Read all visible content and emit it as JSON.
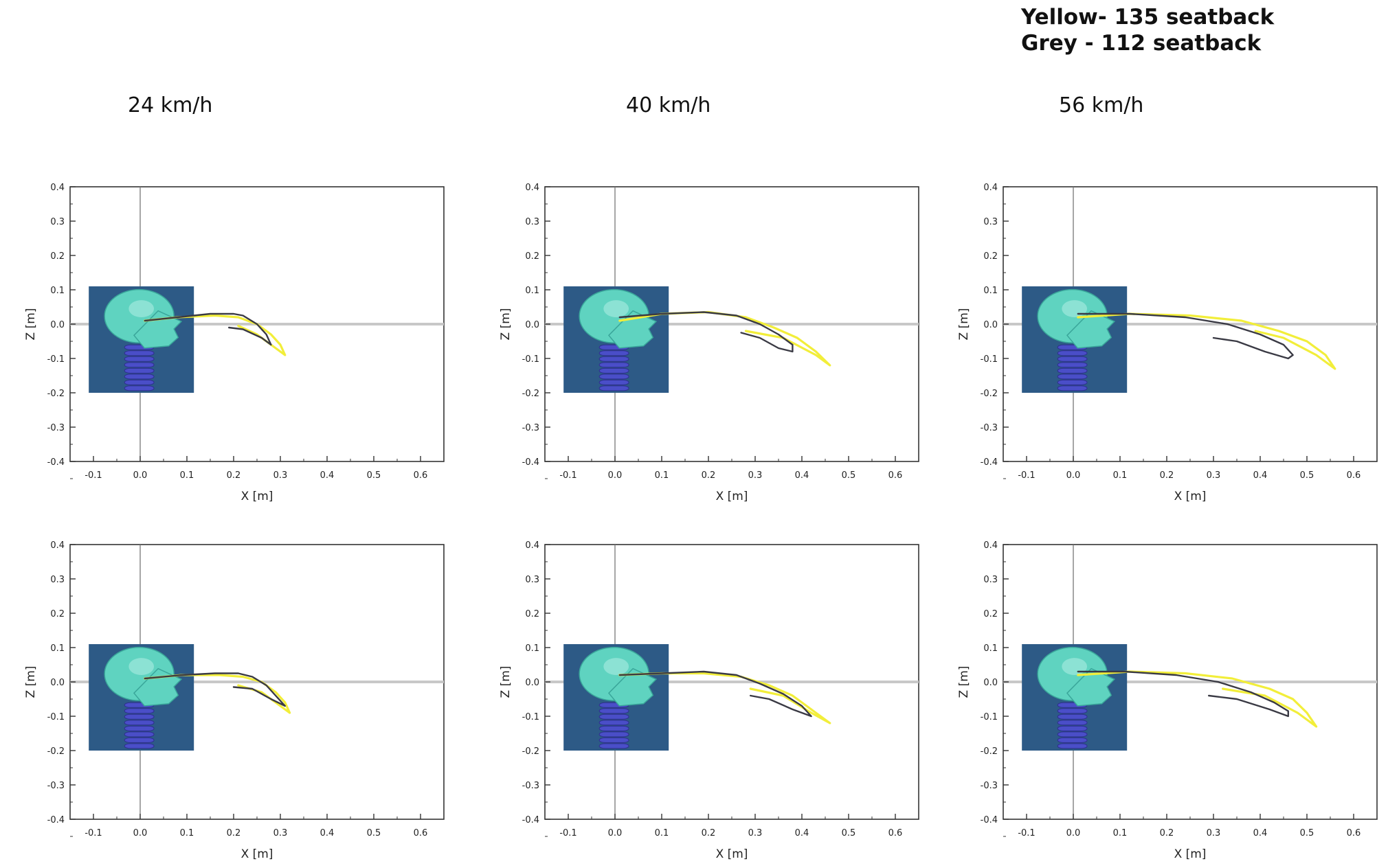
{
  "legend": {
    "yellow": "Yellow- 135 seatback",
    "grey": "Grey - 112 seatback"
  },
  "column_labels": [
    "24 km/h",
    "40 km/h",
    "56 km/h"
  ],
  "colors": {
    "yellow": "#f2ee3a",
    "grey": "#3a3a44",
    "inset_bg": "#2d5a86",
    "axis_zero": "#c8c8c8"
  },
  "chart_data": [
    {
      "type": "line",
      "speed": "24 km/h",
      "row": 1,
      "xlabel": "X [m]",
      "ylabel": "Z [m]",
      "xlim": [
        -0.15,
        0.65
      ],
      "ylim": [
        -0.4,
        0.4
      ],
      "xticks": [
        "-0.1",
        "0.0",
        "0.1",
        "0.2",
        "0.3",
        "0.4",
        "0.5",
        "0.6"
      ],
      "yticks": [
        "0.4",
        "0.3",
        "0.2",
        "0.1",
        "0.0",
        "-0.1",
        "-0.2",
        "-0.3",
        "-0.4"
      ],
      "grid": false,
      "inset_image": "head-neck-model",
      "series": [
        {
          "color": "yellow",
          "x": [
            0.01,
            0.08,
            0.16,
            0.21,
            0.25,
            0.28,
            0.3,
            0.31,
            0.29,
            0.25,
            0.21
          ],
          "y": [
            0.01,
            0.02,
            0.025,
            0.02,
            0.0,
            -0.03,
            -0.06,
            -0.09,
            -0.07,
            -0.03,
            -0.005
          ]
        },
        {
          "color": "grey",
          "x": [
            0.01,
            0.08,
            0.15,
            0.2,
            0.22,
            0.25,
            0.27,
            0.28,
            0.26,
            0.22,
            0.19
          ],
          "y": [
            0.01,
            0.02,
            0.03,
            0.03,
            0.025,
            0.0,
            -0.03,
            -0.06,
            -0.04,
            -0.015,
            -0.01
          ]
        }
      ]
    },
    {
      "type": "line",
      "speed": "40 km/h",
      "row": 1,
      "xlabel": "X [m]",
      "ylabel": "Z [m]",
      "xlim": [
        -0.15,
        0.65
      ],
      "ylim": [
        -0.4,
        0.4
      ],
      "xticks": [
        "-0.1",
        "0.0",
        "0.1",
        "0.2",
        "0.3",
        "0.4",
        "0.5",
        "0.6"
      ],
      "yticks": [
        "0.4",
        "0.3",
        "0.2",
        "0.1",
        "0.0",
        "-0.1",
        "-0.2",
        "-0.3",
        "-0.4"
      ],
      "grid": false,
      "inset_image": "head-neck-model",
      "series": [
        {
          "color": "yellow",
          "x": [
            0.01,
            0.1,
            0.2,
            0.28,
            0.34,
            0.39,
            0.43,
            0.46,
            0.43,
            0.36,
            0.28
          ],
          "y": [
            0.01,
            0.03,
            0.035,
            0.02,
            -0.01,
            -0.04,
            -0.08,
            -0.12,
            -0.09,
            -0.04,
            -0.02
          ]
        },
        {
          "color": "grey",
          "x": [
            0.01,
            0.1,
            0.19,
            0.26,
            0.31,
            0.35,
            0.38,
            0.38,
            0.35,
            0.31,
            0.27
          ],
          "y": [
            0.02,
            0.03,
            0.035,
            0.025,
            0.0,
            -0.03,
            -0.06,
            -0.08,
            -0.07,
            -0.04,
            -0.025
          ]
        }
      ]
    },
    {
      "type": "line",
      "speed": "56 km/h",
      "row": 1,
      "xlabel": "X [m]",
      "ylabel": "Z [m]",
      "xlim": [
        -0.15,
        0.65
      ],
      "ylim": [
        -0.4,
        0.4
      ],
      "xticks": [
        "-0.1",
        "0.0",
        "0.1",
        "0.2",
        "0.3",
        "0.4",
        "0.5",
        "0.6"
      ],
      "yticks": [
        "0.4",
        "0.3",
        "0.2",
        "0.1",
        "0.0",
        "-0.1",
        "-0.2",
        "-0.3",
        "-0.4"
      ],
      "grid": false,
      "inset_image": "head-neck-model",
      "series": [
        {
          "color": "yellow",
          "x": [
            0.01,
            0.12,
            0.25,
            0.36,
            0.44,
            0.5,
            0.54,
            0.56,
            0.52,
            0.45,
            0.39
          ],
          "y": [
            0.02,
            0.03,
            0.025,
            0.01,
            -0.02,
            -0.05,
            -0.09,
            -0.13,
            -0.09,
            -0.04,
            -0.02
          ]
        },
        {
          "color": "grey",
          "x": [
            0.01,
            0.12,
            0.24,
            0.33,
            0.4,
            0.45,
            0.47,
            0.46,
            0.41,
            0.35,
            0.3
          ],
          "y": [
            0.03,
            0.03,
            0.02,
            0.0,
            -0.03,
            -0.06,
            -0.09,
            -0.1,
            -0.08,
            -0.05,
            -0.04
          ]
        }
      ]
    },
    {
      "type": "line",
      "speed": "24 km/h",
      "row": 2,
      "xlabel": "X [m]",
      "ylabel": "Z [m]",
      "xlim": [
        -0.15,
        0.65
      ],
      "ylim": [
        -0.4,
        0.4
      ],
      "xticks": [
        "-0.1",
        "0.0",
        "0.1",
        "0.2",
        "0.3",
        "0.4",
        "0.5",
        "0.6"
      ],
      "yticks": [
        "0.4",
        "0.3",
        "0.2",
        "0.1",
        "0.0",
        "-0.1",
        "-0.2",
        "-0.3",
        "-0.4"
      ],
      "grid": false,
      "inset_image": "head-neck-model",
      "series": [
        {
          "color": "yellow",
          "x": [
            0.01,
            0.09,
            0.17,
            0.22,
            0.26,
            0.29,
            0.31,
            0.32,
            0.3,
            0.26,
            0.21
          ],
          "y": [
            0.01,
            0.02,
            0.02,
            0.015,
            0.0,
            -0.03,
            -0.06,
            -0.09,
            -0.07,
            -0.03,
            -0.01
          ]
        },
        {
          "color": "grey",
          "x": [
            0.01,
            0.09,
            0.16,
            0.21,
            0.24,
            0.27,
            0.29,
            0.31,
            0.28,
            0.24,
            0.2
          ],
          "y": [
            0.01,
            0.02,
            0.025,
            0.025,
            0.015,
            -0.01,
            -0.04,
            -0.07,
            -0.05,
            -0.02,
            -0.015
          ]
        }
      ]
    },
    {
      "type": "line",
      "speed": "40 km/h",
      "row": 2,
      "xlabel": "X [m]",
      "ylabel": "Z [m]",
      "xlim": [
        -0.15,
        0.65
      ],
      "ylim": [
        -0.4,
        0.4
      ],
      "xticks": [
        "-0.1",
        "0.0",
        "0.1",
        "0.2",
        "0.3",
        "0.4",
        "0.5",
        "0.6"
      ],
      "yticks": [
        "0.4",
        "0.3",
        "0.2",
        "0.1",
        "0.0",
        "-0.1",
        "-0.2",
        "-0.3",
        "-0.4"
      ],
      "grid": false,
      "inset_image": "head-neck-model",
      "series": [
        {
          "color": "yellow",
          "x": [
            0.01,
            0.1,
            0.19,
            0.27,
            0.33,
            0.38,
            0.42,
            0.46,
            0.42,
            0.36,
            0.29
          ],
          "y": [
            0.02,
            0.025,
            0.025,
            0.015,
            -0.01,
            -0.04,
            -0.08,
            -0.12,
            -0.09,
            -0.04,
            -0.02
          ]
        },
        {
          "color": "grey",
          "x": [
            0.01,
            0.1,
            0.19,
            0.26,
            0.31,
            0.36,
            0.4,
            0.42,
            0.38,
            0.33,
            0.29
          ],
          "y": [
            0.02,
            0.025,
            0.03,
            0.02,
            -0.005,
            -0.035,
            -0.07,
            -0.1,
            -0.08,
            -0.05,
            -0.04
          ]
        }
      ]
    },
    {
      "type": "line",
      "speed": "56 km/h",
      "row": 2,
      "xlabel": "X [m]",
      "ylabel": "Z [m]",
      "xlim": [
        -0.15,
        0.65
      ],
      "ylim": [
        -0.4,
        0.4
      ],
      "xticks": [
        "-0.1",
        "0.0",
        "0.1",
        "0.2",
        "0.3",
        "0.4",
        "0.5",
        "0.6"
      ],
      "yticks": [
        "0.4",
        "0.3",
        "0.2",
        "0.1",
        "0.0",
        "-0.1",
        "-0.2",
        "-0.3",
        "-0.4"
      ],
      "grid": false,
      "inset_image": "head-neck-model",
      "series": [
        {
          "color": "yellow",
          "x": [
            0.01,
            0.12,
            0.24,
            0.34,
            0.42,
            0.47,
            0.5,
            0.52,
            0.48,
            0.41,
            0.32
          ],
          "y": [
            0.02,
            0.03,
            0.025,
            0.01,
            -0.02,
            -0.05,
            -0.09,
            -0.13,
            -0.09,
            -0.04,
            -0.02
          ]
        },
        {
          "color": "grey",
          "x": [
            0.01,
            0.11,
            0.22,
            0.31,
            0.38,
            0.43,
            0.46,
            0.46,
            0.42,
            0.35,
            0.29
          ],
          "y": [
            0.03,
            0.03,
            0.02,
            0.0,
            -0.03,
            -0.06,
            -0.085,
            -0.1,
            -0.08,
            -0.05,
            -0.04
          ]
        }
      ]
    }
  ]
}
